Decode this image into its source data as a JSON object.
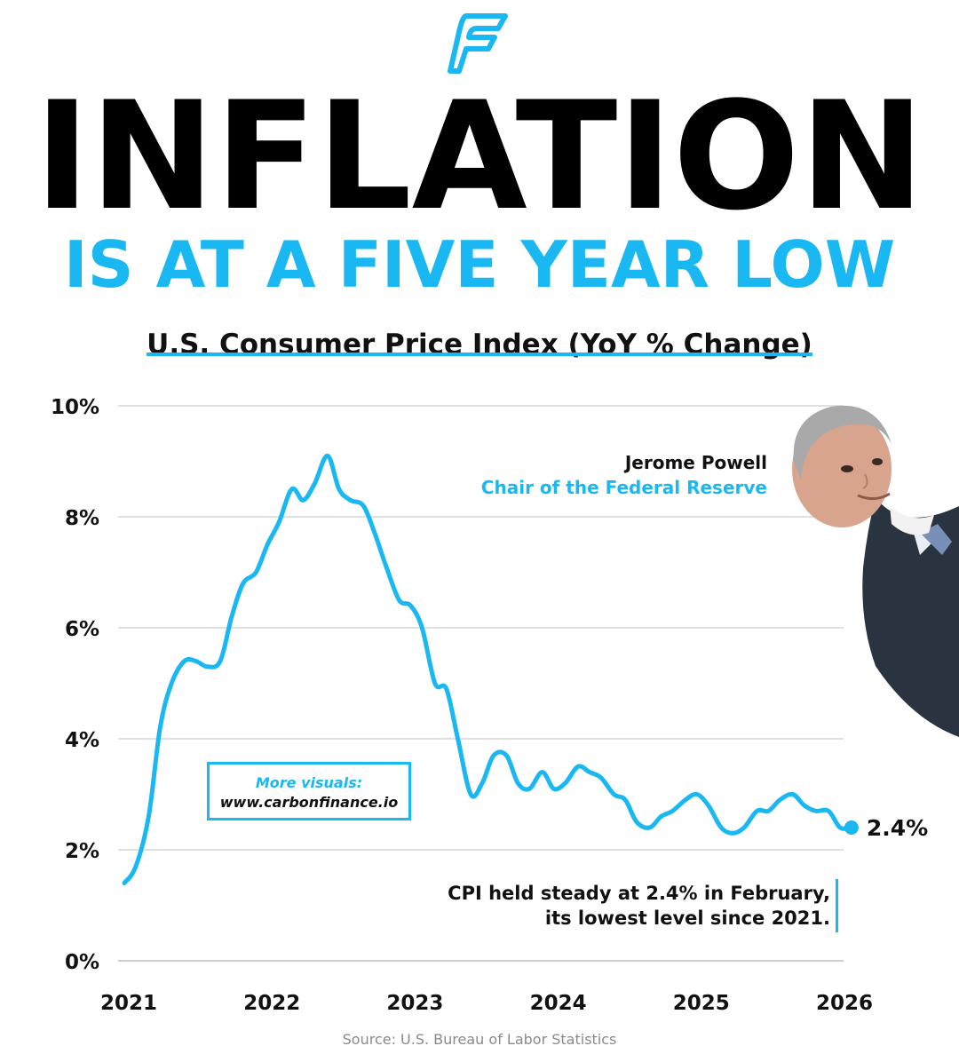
{
  "brand": {
    "logo_icon": "carbon-finance-f-logo-icon",
    "accent_color": "#1ab8f2"
  },
  "headline": {
    "line1": "INFLATION",
    "line2": "IS AT A FIVE YEAR LOW"
  },
  "chart_data": {
    "type": "line",
    "title": "U.S. Consumer Price Index (YoY % Change)",
    "xlabel": "",
    "ylabel": "",
    "ylim": [
      0,
      10
    ],
    "xlim": [
      2021.0,
      2026.0
    ],
    "y_ticks": [
      0,
      2,
      4,
      6,
      8,
      10
    ],
    "y_tick_labels": [
      "0%",
      "2%",
      "4%",
      "6%",
      "8%",
      "10%"
    ],
    "x_ticks": [
      2021,
      2022,
      2023,
      2024,
      2025,
      2026
    ],
    "x_tick_labels": [
      "2021",
      "2022",
      "2023",
      "2024",
      "2025",
      "2026"
    ],
    "grid": true,
    "series": [
      {
        "name": "CPI YoY % change",
        "color": "#1ab8f2",
        "x": [
          2021.0,
          2021.08,
          2021.17,
          2021.25,
          2021.33,
          2021.42,
          2021.5,
          2021.58,
          2021.67,
          2021.75,
          2021.83,
          2021.92,
          2022.0,
          2022.08,
          2022.17,
          2022.25,
          2022.33,
          2022.42,
          2022.5,
          2022.58,
          2022.67,
          2022.75,
          2022.83,
          2022.92,
          2023.0,
          2023.08,
          2023.17,
          2023.25,
          2023.33,
          2023.42,
          2023.5,
          2023.58,
          2023.67,
          2023.75,
          2023.83,
          2023.92,
          2024.0,
          2024.08,
          2024.17,
          2024.25,
          2024.33,
          2024.42,
          2024.5,
          2024.58,
          2024.67,
          2024.75,
          2024.83,
          2024.92,
          2025.0,
          2025.08,
          2025.17,
          2025.25,
          2025.33,
          2025.42,
          2025.5,
          2025.58,
          2025.67,
          2025.75,
          2025.83,
          2025.92,
          2026.0,
          2026.08
        ],
        "values": [
          1.4,
          1.7,
          2.6,
          4.2,
          5.0,
          5.4,
          5.4,
          5.3,
          5.4,
          6.2,
          6.8,
          7.0,
          7.5,
          7.9,
          8.5,
          8.3,
          8.6,
          9.1,
          8.5,
          8.3,
          8.2,
          7.7,
          7.1,
          6.5,
          6.4,
          6.0,
          5.0,
          4.9,
          4.0,
          3.0,
          3.2,
          3.7,
          3.7,
          3.2,
          3.1,
          3.4,
          3.1,
          3.2,
          3.5,
          3.4,
          3.3,
          3.0,
          2.9,
          2.5,
          2.4,
          2.6,
          2.7,
          2.9,
          3.0,
          2.8,
          2.4,
          2.3,
          2.4,
          2.7,
          2.7,
          2.9,
          3.0,
          2.8,
          2.7,
          2.7,
          2.4,
          2.4
        ]
      }
    ],
    "end_label": "2.4%",
    "source": "Source: U.S. Bureau of Labor Statistics"
  },
  "annotation": {
    "name": "Jerome Powell",
    "role": "Chair of the Federal Reserve"
  },
  "promo": {
    "line1": "More visuals:",
    "line2": "www.carbonfinance.io"
  },
  "callout": {
    "line1": "CPI held steady at 2.4% in February,",
    "line2": "its lowest level since 2021."
  }
}
